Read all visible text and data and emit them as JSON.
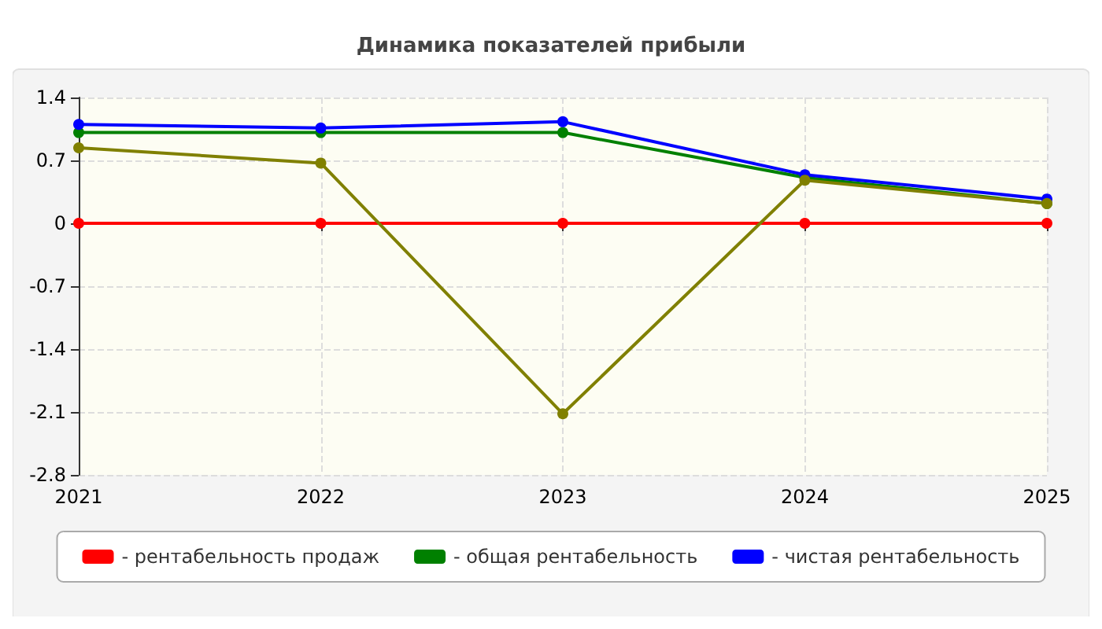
{
  "chart_data": {
    "type": "line",
    "title": "Динамика показателей прибыли",
    "categories": [
      "2021",
      "2022",
      "2023",
      "2024",
      "2025"
    ],
    "series": [
      {
        "name": "- рентабельность продаж",
        "color": "#ff0000",
        "values": [
          0,
          0,
          0,
          0,
          0
        ]
      },
      {
        "name": "- общая рентабельность",
        "color": "#008000",
        "values": [
          1.01,
          1.01,
          1.01,
          0.51,
          0.22
        ]
      },
      {
        "name": "- чистая рентабельность",
        "color": "#0000ff",
        "values": [
          1.1,
          1.06,
          1.13,
          0.54,
          0.27
        ]
      },
      {
        "color": "#808000",
        "values": [
          0.84,
          0.67,
          -2.12,
          0.48,
          0.22
        ]
      }
    ],
    "ylim": [
      -2.8,
      1.4
    ],
    "yticks": [
      -2.8,
      -2.1,
      -1.4,
      -0.7,
      0,
      0.7,
      1.4
    ],
    "grid": true,
    "legend": "bottom",
    "marker": "circle",
    "line_style": "solid"
  }
}
